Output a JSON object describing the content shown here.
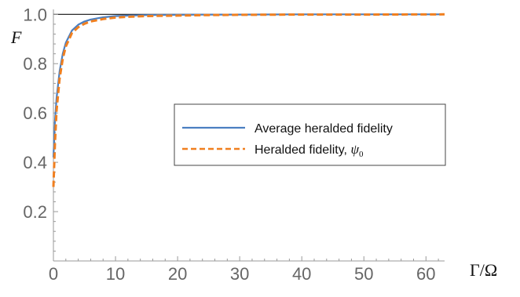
{
  "chart_data": {
    "type": "line",
    "xlabel": "Γ/Ω",
    "ylabel": "F",
    "xlim": [
      0,
      63
    ],
    "ylim": [
      0,
      1.02
    ],
    "x_ticks": [
      0,
      10,
      20,
      30,
      40,
      50,
      60
    ],
    "x_tick_labels": [
      "0",
      "10",
      "20",
      "30",
      "40",
      "50",
      "60"
    ],
    "y_ticks": [
      0.2,
      0.4,
      0.6,
      0.8,
      1.0
    ],
    "y_tick_labels": [
      "0.2",
      "0.4",
      "0.6",
      "0.8",
      "1.0"
    ],
    "reference_line_y": 1.0,
    "legend_position": "center-right",
    "series": [
      {
        "name": "Average heralded fidelity",
        "style": "solid",
        "color": "#4a7fc1",
        "x": [
          0,
          0.25,
          0.5,
          1,
          1.5,
          2,
          3,
          4,
          5,
          6,
          8,
          10,
          12,
          15,
          20,
          25,
          30,
          40,
          50,
          63
        ],
        "y": [
          0.42,
          0.57,
          0.66,
          0.77,
          0.84,
          0.885,
          0.935,
          0.958,
          0.971,
          0.979,
          0.988,
          0.993,
          0.995,
          0.997,
          0.998,
          0.999,
          0.999,
          1.0,
          1.0,
          1.0
        ]
      },
      {
        "name": "Heralded fidelity, ψ0",
        "label_text": "Heralded fidelity, ",
        "label_symbol": "ψ",
        "label_subscript": "0",
        "style": "dashed",
        "color": "#f07f1f",
        "x": [
          0,
          0.25,
          0.5,
          1,
          1.5,
          2,
          3,
          4,
          5,
          6,
          8,
          10,
          12,
          15,
          20,
          25,
          30,
          40,
          50,
          63
        ],
        "y": [
          0.3,
          0.48,
          0.61,
          0.74,
          0.82,
          0.87,
          0.925,
          0.948,
          0.962,
          0.971,
          0.981,
          0.987,
          0.99,
          0.993,
          0.995,
          0.997,
          0.998,
          0.999,
          0.999,
          1.0
        ]
      }
    ]
  }
}
